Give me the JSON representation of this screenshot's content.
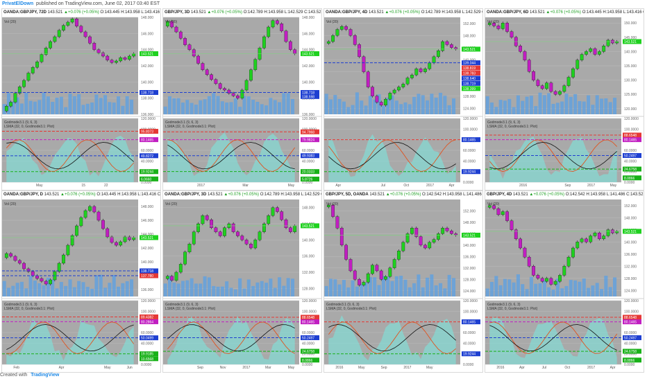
{
  "header": {
    "brand": "PrivatElDown",
    "published": "published on TradingView.com, June 02, 2017 03:40 EST"
  },
  "footer": {
    "created_with": "Created with",
    "tradingview": "TradingView"
  },
  "colors": {
    "up": "#1fd11f",
    "down": "#c11ec1",
    "volume": "#5aa0e6",
    "osc_fill": "#7fe0d8",
    "red_level": "#e53935",
    "blue_level": "#1e3fd1",
    "green_level": "#18b118"
  },
  "chart_data": [
    {
      "type": "candlestick",
      "header": {
        "symbol": "OANDA:GBPJPY, 72D",
        "last": "143.521",
        "change": "+0.076 (+0.05%)",
        "open": "O:143.445",
        "high": "H:143.958",
        "low": "L:143.416",
        "close": "C:143.521"
      },
      "study": "Vol (20)",
      "osc_title": "Godmode3.1 (9, 6, 3)",
      "osc_sub": "LSMA (32, 0, Godmode3.1: Plot)",
      "price_ticks": [
        "148.000",
        "146.000",
        "144.000",
        "142.000",
        "140.000",
        "138.000",
        "136.000"
      ],
      "price_labels": [
        {
          "text": "143.521",
          "color": "#1fd11f",
          "y": 143.5
        },
        {
          "text": "138.718",
          "color": "#1e3fd1",
          "y": 138.7
        }
      ],
      "osc_ticks": [
        "120.0000",
        "100.0000",
        "80.0000",
        "60.0000",
        "40.0000",
        "20.0000",
        "0.0000"
      ],
      "osc_labels": [
        {
          "text": "95.8073",
          "color": "#e53935",
          "y": 95.8
        },
        {
          "text": "80.1465",
          "color": "#c11ec1",
          "y": 80.1
        },
        {
          "text": "49.8272",
          "color": "#1e3fd1",
          "y": 49.8
        },
        {
          "text": "19.9244",
          "color": "#18b118",
          "y": 19.9
        },
        {
          "text": "6.0660",
          "color": "#18b118",
          "y": 6.1
        }
      ],
      "x_ticks": [
        "",
        "May",
        "",
        "15",
        "22",
        ""
      ],
      "prices": [
        137.0,
        137.5,
        138.6,
        139.4,
        140.2,
        141.1,
        141.8,
        142.5,
        143.4,
        144.2,
        145.0,
        145.6,
        146.4,
        147.0,
        147.4,
        147.8,
        146.9,
        146.2,
        145.6,
        144.8,
        144.0,
        143.6,
        143.2,
        142.7,
        142.4,
        142.6,
        143.0,
        142.8,
        143.2,
        143.5
      ],
      "levels": [
        138.7
      ],
      "osc_levels": [
        95.8,
        80.1,
        49.8,
        19.9
      ],
      "pmin": 136,
      "pmax": 148
    },
    {
      "type": "candlestick",
      "header": {
        "symbol": "GBP/JPY, 3D",
        "last": "143.521",
        "change": "+0.076 (+0.05%)",
        "open": "O:142.789",
        "high": "H:143.958",
        "low": "L:142.529",
        "close": "C:143.521"
      },
      "study": "Vol (20)",
      "osc_title": "Godmode3.1 (9, 6, 3)",
      "osc_sub": "LSMA (32, 0, Godmode3.1: Plot)",
      "price_ticks": [
        "148.000",
        "146.000",
        "144.000",
        "142.000",
        "140.000",
        "138.000",
        "136.000"
      ],
      "price_labels": [
        {
          "text": "143.521",
          "color": "#1fd11f",
          "y": 143.5
        },
        {
          "text": "138.718",
          "color": "#1e3fd1",
          "y": 138.7
        },
        {
          "text": "138.598",
          "color": "#1e3fd1",
          "y": 138.2
        }
      ],
      "osc_ticks": [
        "120.0000",
        "100.0000",
        "80.0000",
        "60.0000",
        "40.0000",
        "20.0000",
        "0.0000"
      ],
      "osc_labels": [
        {
          "text": "94.7968",
          "color": "#e53935",
          "y": 94.8
        },
        {
          "text": "79.9824",
          "color": "#c11ec1",
          "y": 80.0
        },
        {
          "text": "49.9383",
          "color": "#1e3fd1",
          "y": 49.9
        },
        {
          "text": "20.0333",
          "color": "#18b118",
          "y": 20.0
        },
        {
          "text": "5.8726",
          "color": "#18b118",
          "y": 5.9
        }
      ],
      "x_ticks": [
        "",
        "2017",
        "",
        "Mar",
        "",
        "May"
      ],
      "prices": [
        147.5,
        146.8,
        146.2,
        145.4,
        144.6,
        144.0,
        143.2,
        142.3,
        141.5,
        140.9,
        140.3,
        139.8,
        139.2,
        139.0,
        138.6,
        138.3,
        138.0,
        139.0,
        140.2,
        141.5,
        142.8,
        144.2,
        145.6,
        146.8,
        147.6,
        147.2,
        146.3,
        145.0,
        144.0,
        143.5
      ],
      "levels": [
        138.7
      ],
      "osc_levels": [
        94.8,
        80.0,
        49.9,
        20.0
      ],
      "pmin": 136,
      "pmax": 148
    },
    {
      "type": "candlestick",
      "header": {
        "symbol": "OANDA:GBP/JPY, 4D",
        "last": "143.521",
        "change": "+0.076 (+0.05%)",
        "open": "O:142.789",
        "high": "H:143.958",
        "low": "L:142.529",
        "close": "C:143.521"
      },
      "study": "Vol (20)",
      "osc_title": "",
      "osc_sub": "",
      "price_ticks": [
        "152.000",
        "148.000",
        "144.000",
        "140.000",
        "136.000",
        "132.000",
        "128.000",
        "124.000"
      ],
      "price_labels": [
        {
          "text": "143.521",
          "color": "#1fd11f",
          "y": 143.5
        },
        {
          "text": "139.044",
          "color": "#1e3fd1",
          "y": 139.0
        },
        {
          "text": "138.819",
          "color": "#e53935",
          "y": 137.3
        },
        {
          "text": "138.783",
          "color": "#e53935",
          "y": 135.6
        },
        {
          "text": "138.640",
          "color": "#1e3fd1",
          "y": 133.9
        },
        {
          "text": "138.719",
          "color": "#1e3fd1",
          "y": 132.2
        },
        {
          "text": "138.399",
          "color": "#1fd11f",
          "y": 130.5
        }
      ],
      "osc_ticks": [
        "120.0000",
        "100.0000",
        "80.0000",
        "60.0000",
        "40.0000",
        "20.0000",
        "0.0000"
      ],
      "osc_labels": [
        {
          "text": "80.1465",
          "color": "#1e3fd1",
          "y": 80.1
        },
        {
          "text": "19.9244",
          "color": "#1e3fd1",
          "y": 19.9
        }
      ],
      "x_ticks": [
        "Apr",
        "",
        "Jul",
        "Oct",
        "2017",
        "Apr"
      ],
      "prices": [
        146,
        148,
        150,
        151,
        150,
        148,
        145,
        141,
        136,
        131,
        128,
        126,
        125,
        127,
        129,
        130,
        131,
        132,
        134,
        135,
        137,
        136,
        137,
        139,
        141,
        143,
        146,
        145,
        144,
        143.5
      ],
      "levels": [
        139.0
      ],
      "osc_levels": [
        80.1,
        19.9
      ],
      "pmin": 122,
      "pmax": 154
    },
    {
      "type": "candlestick",
      "header": {
        "symbol": "OANDA:GBP/JPY, 6D",
        "last": "143.521",
        "change": "+0.076 (+0.05%)",
        "open": "O:143.445",
        "high": "H:143.958",
        "low": "L:143.416",
        "close": "C:143.521"
      },
      "study": "Vol (20)",
      "osc_title": "Godmode3.1 (9, 6, 3)",
      "osc_sub": "LSMA (32, 0, Godmode3.1: Plot)",
      "price_ticks": [
        "150.000",
        "145.000",
        "140.000",
        "135.000",
        "130.000",
        "125.000",
        "120.000"
      ],
      "price_labels": [
        {
          "text": "143.521",
          "color": "#1fd11f",
          "y": 143.5
        }
      ],
      "osc_ticks": [
        "120.0000",
        "100.0000",
        "80.0000",
        "60.0000",
        "40.0000",
        "20.0000",
        "0.0000"
      ],
      "osc_labels": [
        {
          "text": "88.6548",
          "color": "#e53935",
          "y": 88.7
        },
        {
          "text": "80.1465",
          "color": "#c11ec1",
          "y": 80.1
        },
        {
          "text": "50.2497",
          "color": "#1e3fd1",
          "y": 50.2
        },
        {
          "text": "24.6758",
          "color": "#18b118",
          "y": 24.7
        },
        {
          "text": "8.0866",
          "color": "#18b118",
          "y": 8.1
        }
      ],
      "x_ticks": [
        "",
        "2016",
        "",
        "Sep",
        "2017",
        "May"
      ],
      "prices": [
        150,
        149,
        148,
        150,
        147,
        145,
        142,
        140,
        137,
        133,
        130,
        128,
        127,
        129,
        126,
        125,
        126,
        128,
        131,
        134,
        137,
        139,
        140,
        141,
        139,
        140,
        142,
        144,
        143,
        143.5
      ],
      "levels": [],
      "osc_levels": [
        88.7,
        80.1,
        50.2,
        24.7
      ],
      "pmin": 118,
      "pmax": 152
    },
    {
      "type": "candlestick",
      "header": {
        "symbol": "OANDA:GBP/JPY, D",
        "last": "143.521",
        "change": "+0.076 (+0.05%)",
        "open": "O:143.445",
        "high": "H:143.958",
        "low": "L:143.416",
        "close": "C:143.521"
      },
      "study": "Vol (20)",
      "osc_title": "Godmode3.1 (9, 6, 3)",
      "osc_sub": "LSMA (32, 0, Godmode3.1: Plot)",
      "price_ticks": [
        "148.000",
        "146.000",
        "144.000",
        "142.000",
        "140.000",
        "138.000",
        "136.000"
      ],
      "price_labels": [
        {
          "text": "143.521",
          "color": "#1fd11f",
          "y": 143.5
        },
        {
          "text": "138.718",
          "color": "#1e3fd1",
          "y": 138.7
        },
        {
          "text": "137.780",
          "color": "#e53935",
          "y": 138.0
        }
      ],
      "osc_ticks": [
        "120.0000",
        "100.0000",
        "80.0000",
        "60.0000",
        "40.0000",
        "20.0000",
        "0.0000"
      ],
      "osc_labels": [
        {
          "text": "89.4382",
          "color": "#e53935",
          "y": 89.4
        },
        {
          "text": "80.2864",
          "color": "#c11ec1",
          "y": 80.3
        },
        {
          "text": "50.0499",
          "color": "#1e3fd1",
          "y": 50.0
        },
        {
          "text": "19.9185",
          "color": "#18b118",
          "y": 19.9
        },
        {
          "text": "10.6568",
          "color": "#18b118",
          "y": 10.7
        }
      ],
      "x_ticks": [
        "Feb",
        "",
        "Apr",
        "",
        "May",
        "Jun"
      ],
      "prices": [
        141.2,
        140.8,
        140.2,
        139.8,
        139.0,
        138.6,
        138.0,
        137.6,
        137.2,
        136.8,
        137.4,
        138.6,
        139.8,
        141.0,
        142.4,
        143.8,
        145.2,
        146.4,
        147.4,
        148.0,
        147.2,
        146.0,
        144.8,
        143.6,
        142.8,
        142.4,
        142.9,
        143.6,
        143.2,
        143.5
      ],
      "levels": [
        138.7,
        138.0
      ],
      "osc_levels": [
        89.4,
        80.3,
        50.0,
        19.9
      ],
      "pmin": 135,
      "pmax": 149
    },
    {
      "type": "candlestick",
      "header": {
        "symbol": "OANDA:GBP/JPY, 3D",
        "last": "143.521",
        "change": "+0.076 (+0.05%)",
        "open": "O:142.789",
        "high": "H:143.958",
        "low": "L:142.529",
        "close": "C:143.521"
      },
      "study": "Vol (20)",
      "osc_title": "Godmode3.1 (9, 6, 3)",
      "osc_sub": "LSMA (32, 0, Godmode3.1: Plot)",
      "price_ticks": [
        "148.000",
        "144.000",
        "140.000",
        "136.000",
        "132.000",
        "128.000"
      ],
      "price_labels": [
        {
          "text": "143.521",
          "color": "#1fd11f",
          "y": 143.5
        }
      ],
      "osc_ticks": [
        "120.0000",
        "100.0000",
        "80.0000",
        "60.0000",
        "40.0000",
        "20.0000",
        "0.0000"
      ],
      "osc_labels": [
        {
          "text": "88.6548",
          "color": "#e53935",
          "y": 88.7
        },
        {
          "text": "80.1465",
          "color": "#c11ec1",
          "y": 80.1
        },
        {
          "text": "50.2497",
          "color": "#1e3fd1",
          "y": 50.2
        },
        {
          "text": "24.6758",
          "color": "#18b118",
          "y": 24.7
        },
        {
          "text": "8.0866",
          "color": "#18b118",
          "y": 8.1
        }
      ],
      "x_ticks": [
        "",
        "Sep",
        "Nov",
        "2017",
        "Mar",
        "May"
      ],
      "prices": [
        131,
        130,
        132,
        134,
        137,
        139,
        142,
        144,
        146,
        145,
        143,
        142,
        141,
        143,
        144,
        142,
        141,
        140,
        139,
        138,
        140,
        142,
        144,
        146,
        148,
        147,
        145,
        143,
        142,
        143.5
      ],
      "levels": [],
      "osc_levels": [
        88.7,
        80.1,
        50.2,
        24.7
      ],
      "pmin": 126,
      "pmax": 150
    },
    {
      "type": "candlestick",
      "header": {
        "symbol": "GBP/JPY, 5D, OANDA",
        "last": "143.521",
        "change": "+0.076 (+0.05%)",
        "open": "O:142.542",
        "high": "H:143.958",
        "low": "L:141.486",
        "close": "C:143.521"
      },
      "study": "Vol (20)",
      "osc_title": "Godmode3.1 (9, 6, 3)",
      "osc_sub": "LSMA (32, 0, Godmode3.1: Plot)",
      "price_ticks": [
        "152.000",
        "148.000",
        "144.000",
        "140.000",
        "136.000",
        "132.000",
        "128.000",
        "124.000"
      ],
      "price_labels": [
        {
          "text": "143.521",
          "color": "#1fd11f",
          "y": 143.5
        }
      ],
      "osc_ticks": [
        "120.0000",
        "100.0000",
        "80.0000",
        "60.0000",
        "40.0000",
        "20.0000",
        "0.0000"
      ],
      "osc_labels": [
        {
          "text": "80.1465",
          "color": "#1e3fd1",
          "y": 80.1
        },
        {
          "text": "19.9244",
          "color": "#1e3fd1",
          "y": 19.9
        }
      ],
      "x_ticks": [
        "2016",
        "May",
        "Sep",
        "2017",
        "May",
        ""
      ],
      "prices": [
        154,
        150,
        146,
        140,
        135,
        131,
        128,
        126,
        127,
        130,
        133,
        131,
        128,
        129,
        132,
        135,
        138,
        141,
        144,
        146,
        143,
        140,
        139,
        141,
        142,
        144,
        146,
        145,
        144,
        143.5
      ],
      "levels": [],
      "osc_levels": [
        80.1,
        19.9
      ],
      "pmin": 122,
      "pmax": 156
    },
    {
      "type": "candlestick",
      "header": {
        "symbol": "GBP/JPY, 4D",
        "last": "143.521",
        "change": "+0.076 (+0.05%)",
        "open": "O:142.542",
        "high": "H:143.958",
        "low": "L:141.486",
        "close": "C:143.521"
      },
      "study": "Vol (20)",
      "osc_title": "Godmode3.1 (9, 6, 3)",
      "osc_sub": "LSMA (32, 0, Godmode3.1: Plot)",
      "price_ticks": [
        "152.000",
        "148.000",
        "144.000",
        "140.000",
        "136.000",
        "132.000",
        "128.000",
        "124.000"
      ],
      "price_labels": [
        {
          "text": "143.521",
          "color": "#1fd11f",
          "y": 143.5
        }
      ],
      "osc_ticks": [
        "120.0000",
        "100.0000",
        "80.0000",
        "60.0000",
        "40.0000",
        "20.0000",
        "0.0000"
      ],
      "osc_labels": [
        {
          "text": "88.6548",
          "color": "#e53935",
          "y": 88.7
        },
        {
          "text": "80.1465",
          "color": "#c11ec1",
          "y": 80.1
        },
        {
          "text": "50.2497",
          "color": "#1e3fd1",
          "y": 50.2
        },
        {
          "text": "24.6758",
          "color": "#18b118",
          "y": 24.7
        },
        {
          "text": "8.0866",
          "color": "#18b118",
          "y": 8.1
        }
      ],
      "x_ticks": [
        "2016",
        "Apr",
        "Jul",
        "Oct",
        "2017",
        "Apr"
      ],
      "prices": [
        152,
        151,
        149,
        150,
        147,
        144,
        141,
        138,
        135,
        132,
        129,
        128,
        127,
        128,
        126,
        127,
        129,
        132,
        135,
        138,
        140,
        141,
        140,
        142,
        143,
        141,
        142,
        144,
        143,
        143.5
      ],
      "levels": [],
      "osc_levels": [
        88.7,
        80.1,
        50.2,
        24.7
      ],
      "pmin": 122,
      "pmax": 154
    }
  ]
}
